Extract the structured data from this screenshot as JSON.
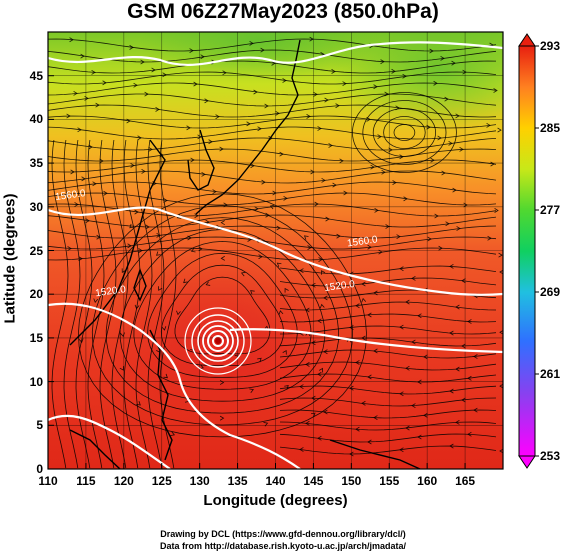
{
  "title": "GSM 06Z27May2023 (850.0hPa)",
  "map": {
    "xlabel": "Longitude (degrees)",
    "ylabel": "Latitude  (degrees)",
    "lon_range": [
      110,
      170
    ],
    "lat_range": [
      0,
      50
    ],
    "lon_ticks": [
      "110",
      "115",
      "120",
      "125",
      "130",
      "135",
      "140",
      "145",
      "150",
      "155",
      "160",
      "165"
    ],
    "lat_ticks": [
      "0",
      "5",
      "10",
      "15",
      "20",
      "25",
      "30",
      "35",
      "40",
      "45"
    ],
    "contour_labels": [
      {
        "text": "1560.0",
        "lon": 151.5,
        "lat": 25.7
      },
      {
        "text": "1520.0",
        "lon": 148.5,
        "lat": 20.6
      },
      {
        "text": "1560.0",
        "lon": 113.0,
        "lat": 31.0
      },
      {
        "text": "1520.0",
        "lon": 118.3,
        "lat": 20.0
      }
    ],
    "typhoon_center": {
      "lon": 133.0,
      "lat": 17.0
    }
  },
  "colorbar": {
    "labels": [
      "293",
      "285",
      "277",
      "269",
      "261",
      "253"
    ],
    "min": 253,
    "max": 293,
    "colors": [
      "#ff00ff",
      "#9a3df0",
      "#3070ff",
      "#20c0e0",
      "#10d060",
      "#50d830",
      "#c8e818",
      "#ffd000",
      "#ff9020",
      "#f85030",
      "#e82010"
    ]
  },
  "credits": {
    "line1": "Drawing by DCL (https://www.gfd-dennou.org/library/dcl/)",
    "line2": "Data from http://database.rish.kyoto-u.ac.jp/arch/jmadata/"
  }
}
